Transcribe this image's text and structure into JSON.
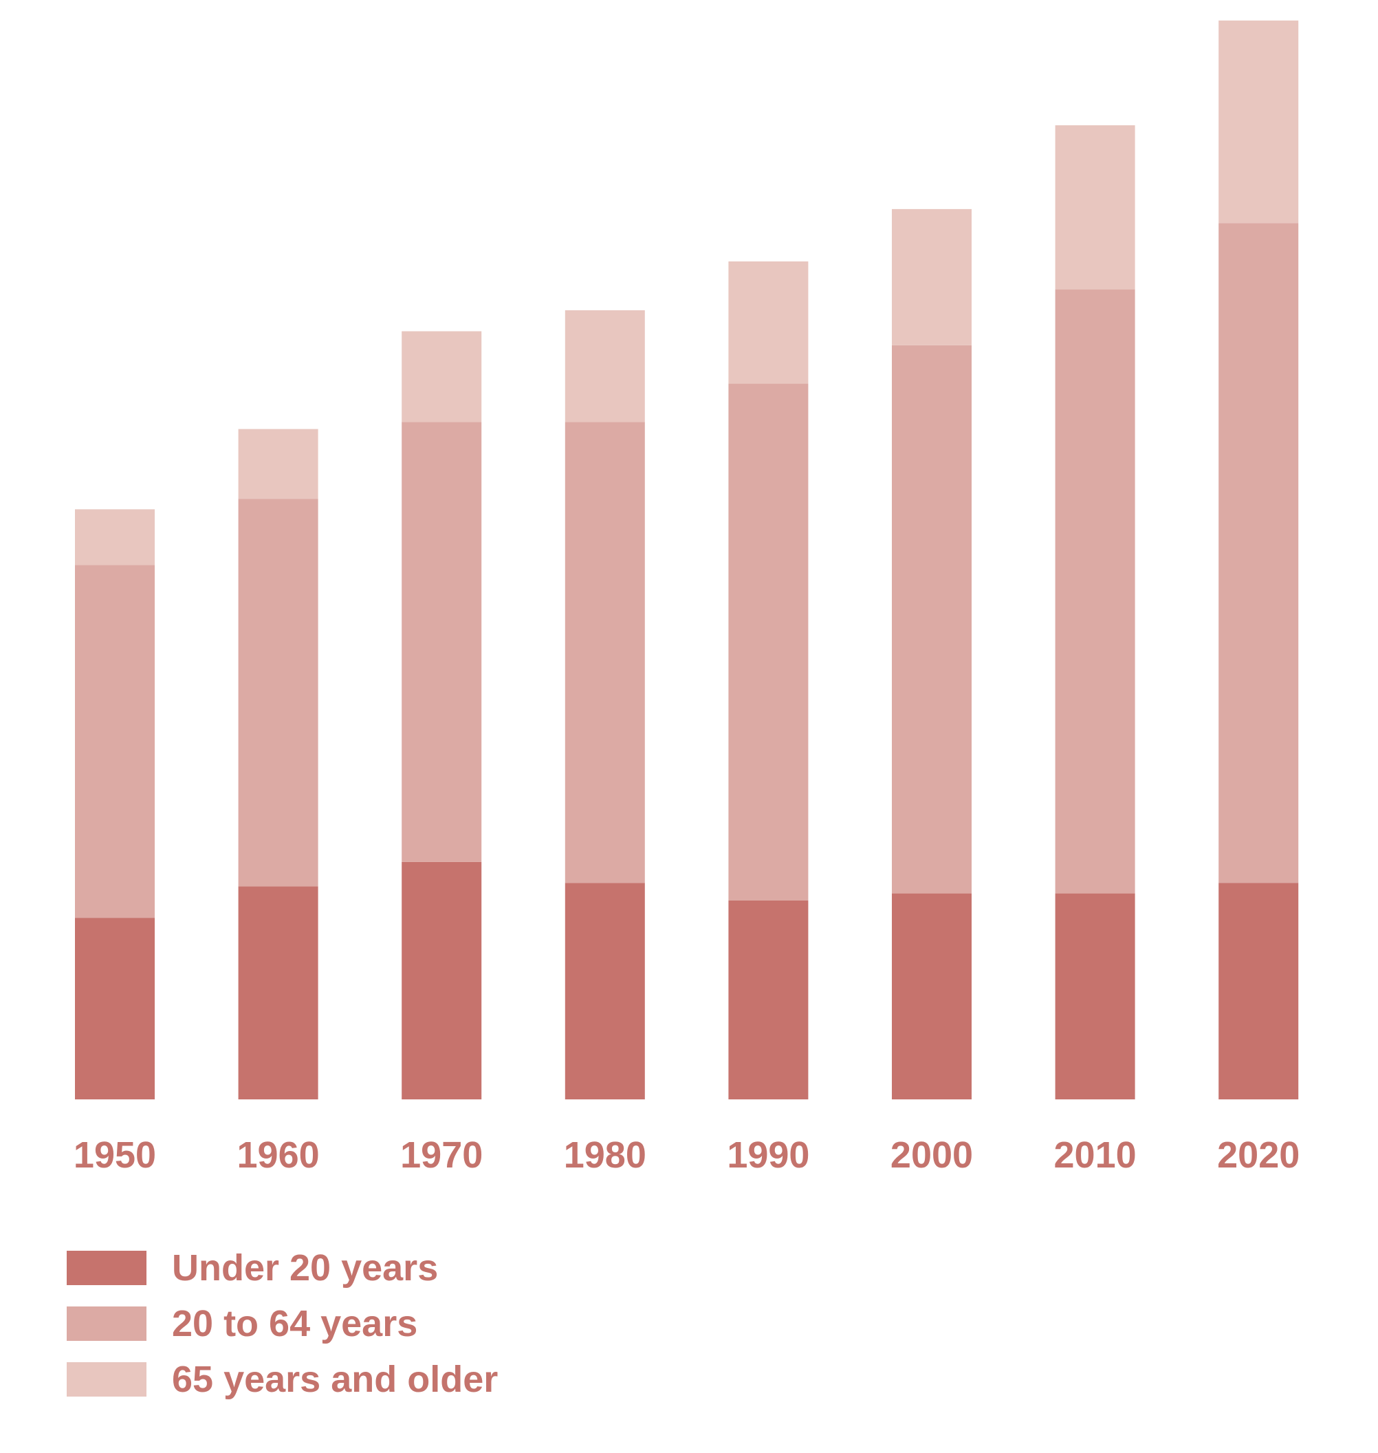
{
  "colors": {
    "text": "#c4736c"
  },
  "chart_data": {
    "type": "bar",
    "stacked": true,
    "categories": [
      "1950",
      "1960",
      "1970",
      "1980",
      "1990",
      "2000",
      "2010",
      "2020"
    ],
    "series": [
      {
        "name": "Under 20 years",
        "color": "#c6736d",
        "values": [
          26,
          30.5,
          34,
          31,
          28.5,
          29.5,
          29.5,
          31
        ]
      },
      {
        "name": "20 to 64 years",
        "color": "#dcaaa4",
        "values": [
          50.5,
          55.5,
          63,
          66,
          74,
          78.5,
          86.5,
          94.5
        ]
      },
      {
        "name": "65 years and older",
        "color": "#e8c6bf",
        "values": [
          8,
          10,
          13,
          16,
          17.5,
          19.5,
          23.5,
          29
        ]
      }
    ],
    "ylim": [
      0,
      155
    ],
    "grid": false,
    "legend_position": "bottom-left"
  }
}
